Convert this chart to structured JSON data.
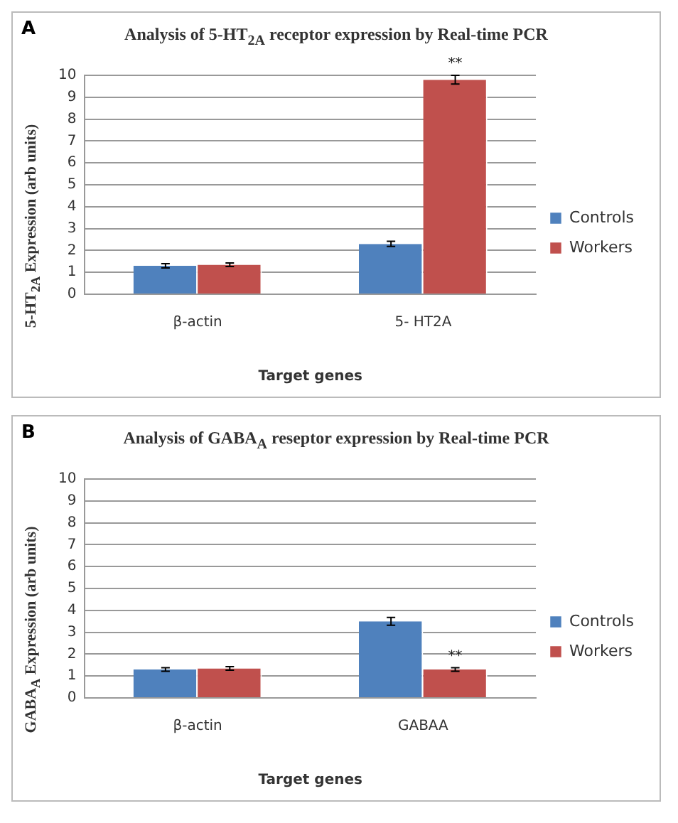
{
  "chart_data": [
    {
      "type": "bar",
      "title": "Analysis of 5-HT$_{2A}$ receptor expression by Real-time PCR",
      "xlabel": "Target genes",
      "ylabel": "5-HT$_{2A}$ Expression (arb units)",
      "categories": [
        "β-actin",
        "5- HT2A"
      ],
      "series": [
        {
          "name": "Controls",
          "color": "#4f81bd",
          "values": [
            1.3,
            2.3
          ],
          "errors": [
            0.1,
            0.12
          ]
        },
        {
          "name": "Workers",
          "color": "#c0504d",
          "values": [
            1.35,
            9.8
          ],
          "errors": [
            0.08,
            0.2
          ]
        }
      ],
      "ylim": [
        0,
        10
      ],
      "yticks": [
        0,
        1,
        2,
        3,
        4,
        5,
        6,
        7,
        8,
        9,
        10
      ],
      "grid": "y",
      "legend": "right",
      "annotations": [
        "A",
        {
          "text": "**",
          "x": "5- HT2A",
          "y": 9.8
        }
      ]
    },
    {
      "type": "bar",
      "title": "Analysis of GABA$_{A}$ reseptor expression by Real-time PCR",
      "xlabel": "Target genes",
      "ylabel": "GABA$_{A}$ Expression (arb units)",
      "categories": [
        "β-actin",
        "GABAA"
      ],
      "series": [
        {
          "name": "Controls",
          "color": "#4f81bd",
          "values": [
            1.3,
            3.5
          ],
          "errors": [
            0.08,
            0.18
          ]
        },
        {
          "name": "Workers",
          "color": "#c0504d",
          "values": [
            1.35,
            1.3
          ],
          "errors": [
            0.08,
            0.08
          ]
        }
      ],
      "ylim": [
        0,
        10
      ],
      "yticks": [
        0,
        1,
        2,
        3,
        4,
        5,
        6,
        7,
        8,
        9,
        10
      ],
      "grid": "y",
      "legend": "right",
      "annotations": [
        "B",
        {
          "text": "**",
          "x": "GABAA",
          "y": 1.3
        }
      ]
    }
  ]
}
